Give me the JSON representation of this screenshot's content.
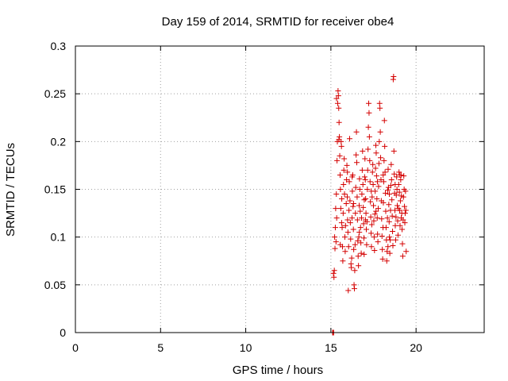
{
  "chart_data": {
    "type": "scatter",
    "title": "Day 159 of 2014, SRMTID for receiver obe4",
    "xlabel": "GPS time / hours",
    "ylabel": "SRMTID / TECUs",
    "xlim": [
      0,
      24
    ],
    "ylim": [
      0,
      0.3
    ],
    "xticks": [
      "0",
      "5",
      "10",
      "15",
      "20"
    ],
    "yticks": [
      "0",
      "0.05",
      "0.1",
      "0.15",
      "0.2",
      "0.25",
      "0.3"
    ],
    "grid": true,
    "marker": "plus",
    "color": "#d40000",
    "series": [
      {
        "points": [
          [
            15.1,
            0.0
          ],
          [
            15.12,
            0.0
          ],
          [
            15.14,
            0.0
          ],
          [
            15.16,
            0.0
          ],
          [
            15.15,
            0.062
          ],
          [
            15.18,
            0.058
          ],
          [
            15.2,
            0.065
          ],
          [
            15.22,
            0.1
          ],
          [
            15.24,
            0.088
          ],
          [
            15.26,
            0.11
          ],
          [
            15.28,
            0.13
          ],
          [
            15.3,
            0.095
          ],
          [
            15.32,
            0.145
          ],
          [
            15.34,
            0.12
          ],
          [
            15.36,
            0.18
          ],
          [
            15.38,
            0.2
          ],
          [
            15.4,
            0.24
          ],
          [
            15.42,
            0.253
          ],
          [
            15.44,
            0.248
          ],
          [
            15.46,
            0.235
          ],
          [
            15.48,
            0.22
          ],
          [
            15.5,
            0.205
          ],
          [
            15.52,
            0.185
          ],
          [
            15.54,
            0.165
          ],
          [
            15.56,
            0.15
          ],
          [
            15.58,
            0.13
          ],
          [
            15.6,
            0.2
          ],
          [
            15.62,
            0.195
          ],
          [
            15.64,
            0.14
          ],
          [
            15.66,
            0.11
          ],
          [
            15.68,
            0.09
          ],
          [
            15.7,
            0.075
          ],
          [
            15.72,
            0.125
          ],
          [
            15.74,
            0.155
          ],
          [
            15.76,
            0.17
          ],
          [
            15.78,
            0.182
          ],
          [
            15.8,
            0.145
          ],
          [
            15.82,
            0.1
          ],
          [
            15.84,
            0.085
          ],
          [
            15.86,
            0.112
          ],
          [
            15.9,
            0.135
          ],
          [
            15.92,
            0.16
          ],
          [
            15.94,
            0.175
          ],
          [
            15.96,
            0.142
          ],
          [
            15.98,
            0.118
          ],
          [
            16.0,
            0.105
          ],
          [
            16.02,
            0.044
          ],
          [
            16.04,
            0.09
          ],
          [
            16.06,
            0.128
          ],
          [
            16.08,
            0.158
          ],
          [
            16.1,
            0.203
          ],
          [
            16.12,
            0.138
          ],
          [
            16.14,
            0.115
          ],
          [
            16.16,
            0.098
          ],
          [
            16.18,
            0.072
          ],
          [
            16.2,
            0.068
          ],
          [
            16.22,
            0.078
          ],
          [
            16.24,
            0.12
          ],
          [
            16.26,
            0.148
          ],
          [
            16.28,
            0.165
          ],
          [
            16.3,
            0.132
          ],
          [
            16.32,
            0.108
          ],
          [
            16.34,
            0.087
          ],
          [
            16.36,
            0.05
          ],
          [
            16.38,
            0.046
          ],
          [
            16.4,
            0.065
          ],
          [
            16.42,
            0.092
          ],
          [
            16.44,
            0.125
          ],
          [
            16.46,
            0.152
          ],
          [
            16.48,
            0.186
          ],
          [
            16.5,
            0.21
          ],
          [
            16.52,
            0.178
          ],
          [
            16.54,
            0.142
          ],
          [
            16.56,
            0.118
          ],
          [
            16.58,
            0.096
          ],
          [
            16.6,
            0.08
          ],
          [
            16.62,
            0.07
          ],
          [
            16.64,
            0.1
          ],
          [
            16.66,
            0.133
          ],
          [
            16.68,
            0.161
          ],
          [
            16.7,
            0.15
          ],
          [
            16.72,
            0.127
          ],
          [
            16.74,
            0.11
          ],
          [
            16.76,
            0.094
          ],
          [
            16.78,
            0.083
          ],
          [
            16.8,
            0.12
          ],
          [
            16.82,
            0.145
          ],
          [
            16.84,
            0.17
          ],
          [
            16.86,
            0.19
          ],
          [
            16.88,
            0.155
          ],
          [
            16.9,
            0.131
          ],
          [
            16.92,
            0.114
          ],
          [
            16.94,
            0.099
          ],
          [
            16.96,
            0.139
          ],
          [
            16.98,
            0.163
          ],
          [
            17.0,
            0.182
          ],
          [
            17.02,
            0.16
          ],
          [
            17.04,
            0.14
          ],
          [
            17.06,
            0.125
          ],
          [
            17.08,
            0.108
          ],
          [
            17.1,
            0.092
          ],
          [
            17.12,
            0.116
          ],
          [
            17.14,
            0.15
          ],
          [
            17.16,
            0.17
          ],
          [
            17.18,
            0.192
          ],
          [
            17.2,
            0.215
          ],
          [
            17.22,
            0.24
          ],
          [
            17.24,
            0.23
          ],
          [
            17.26,
            0.205
          ],
          [
            17.28,
            0.18
          ],
          [
            17.3,
            0.158
          ],
          [
            17.32,
            0.137
          ],
          [
            17.34,
            0.121
          ],
          [
            17.36,
            0.104
          ],
          [
            17.38,
            0.09
          ],
          [
            17.4,
            0.113
          ],
          [
            17.42,
            0.142
          ],
          [
            17.44,
            0.168
          ],
          [
            17.46,
            0.176
          ],
          [
            17.48,
            0.155
          ],
          [
            17.5,
            0.133
          ],
          [
            17.52,
            0.117
          ],
          [
            17.54,
            0.1
          ],
          [
            17.56,
            0.086
          ],
          [
            17.58,
            0.124
          ],
          [
            17.6,
            0.148
          ],
          [
            17.62,
            0.172
          ],
          [
            17.64,
            0.196
          ],
          [
            17.66,
            0.188
          ],
          [
            17.68,
            0.164
          ],
          [
            17.7,
            0.14
          ],
          [
            17.72,
            0.12
          ],
          [
            17.74,
            0.103
          ],
          [
            17.76,
            0.095
          ],
          [
            17.78,
            0.13
          ],
          [
            17.8,
            0.153
          ],
          [
            17.82,
            0.177
          ],
          [
            17.84,
            0.2
          ],
          [
            17.86,
            0.24
          ],
          [
            17.88,
            0.235
          ],
          [
            17.9,
            0.21
          ],
          [
            17.92,
            0.183
          ],
          [
            17.94,
            0.16
          ],
          [
            17.96,
            0.138
          ],
          [
            17.98,
            0.119
          ],
          [
            18.0,
            0.101
          ],
          [
            18.02,
            0.087
          ],
          [
            18.04,
            0.077
          ],
          [
            18.06,
            0.11
          ],
          [
            18.08,
            0.136
          ],
          [
            18.1,
            0.158
          ],
          [
            18.12,
            0.18
          ],
          [
            18.14,
            0.222
          ],
          [
            18.16,
            0.195
          ],
          [
            18.18,
            0.168
          ],
          [
            18.2,
            0.146
          ],
          [
            18.22,
            0.127
          ],
          [
            18.24,
            0.11
          ],
          [
            18.26,
            0.097
          ],
          [
            18.28,
            0.075
          ],
          [
            18.3,
            0.085
          ],
          [
            18.32,
            0.12
          ],
          [
            18.34,
            0.149
          ],
          [
            18.36,
            0.171
          ],
          [
            18.38,
            0.152
          ],
          [
            18.4,
            0.134
          ],
          [
            18.42,
            0.116
          ],
          [
            18.44,
            0.1
          ],
          [
            18.46,
            0.083
          ],
          [
            18.48,
            0.097
          ],
          [
            18.5,
            0.128
          ],
          [
            18.52,
            0.154
          ],
          [
            18.54,
            0.176
          ],
          [
            18.56,
            0.16
          ],
          [
            18.58,
            0.139
          ],
          [
            18.6,
            0.122
          ],
          [
            18.62,
            0.106
          ],
          [
            18.64,
            0.091
          ],
          [
            18.66,
            0.265
          ],
          [
            18.68,
            0.268
          ],
          [
            18.7,
            0.19
          ],
          [
            18.72,
            0.166
          ],
          [
            18.74,
            0.146
          ],
          [
            18.76,
            0.128
          ],
          [
            18.78,
            0.112
          ],
          [
            18.8,
            0.097
          ],
          [
            18.82,
            0.121
          ],
          [
            18.84,
            0.144
          ],
          [
            18.86,
            0.163
          ],
          [
            18.88,
            0.15
          ],
          [
            18.9,
            0.133
          ],
          [
            18.92,
            0.117
          ],
          [
            18.94,
            0.102
          ],
          [
            18.96,
            0.13
          ],
          [
            18.98,
            0.155
          ],
          [
            19.0,
            0.168
          ],
          [
            19.02,
            0.147
          ],
          [
            19.04,
            0.128
          ],
          [
            19.06,
            0.112
          ],
          [
            19.08,
            0.138
          ],
          [
            19.1,
            0.16
          ],
          [
            19.12,
            0.165
          ],
          [
            19.14,
            0.143
          ],
          [
            19.16,
            0.125
          ],
          [
            19.18,
            0.108
          ],
          [
            19.2,
            0.093
          ],
          [
            19.22,
            0.08
          ],
          [
            19.24,
            0.118
          ],
          [
            19.26,
            0.142
          ],
          [
            19.28,
            0.164
          ],
          [
            19.3,
            0.15
          ],
          [
            19.32,
            0.132
          ],
          [
            19.34,
            0.115
          ],
          [
            19.36,
            0.125
          ],
          [
            19.38,
            0.148
          ],
          [
            19.4,
            0.128
          ],
          [
            19.42,
            0.085
          ],
          [
            15.33,
            0.245
          ],
          [
            15.47,
            0.202
          ],
          [
            15.63,
            0.115
          ],
          [
            15.97,
            0.168
          ],
          [
            16.33,
            0.135
          ],
          [
            16.67,
            0.105
          ],
          [
            17.03,
            0.118
          ],
          [
            17.37,
            0.148
          ],
          [
            17.73,
            0.158
          ],
          [
            18.07,
            0.165
          ],
          [
            18.43,
            0.145
          ],
          [
            18.77,
            0.155
          ],
          [
            19.13,
            0.12
          ],
          [
            15.55,
            0.092
          ],
          [
            16.25,
            0.163
          ],
          [
            16.95,
            0.082
          ],
          [
            17.65,
            0.127
          ],
          [
            18.35,
            0.09
          ],
          [
            19.05,
            0.165
          ]
        ]
      }
    ]
  }
}
